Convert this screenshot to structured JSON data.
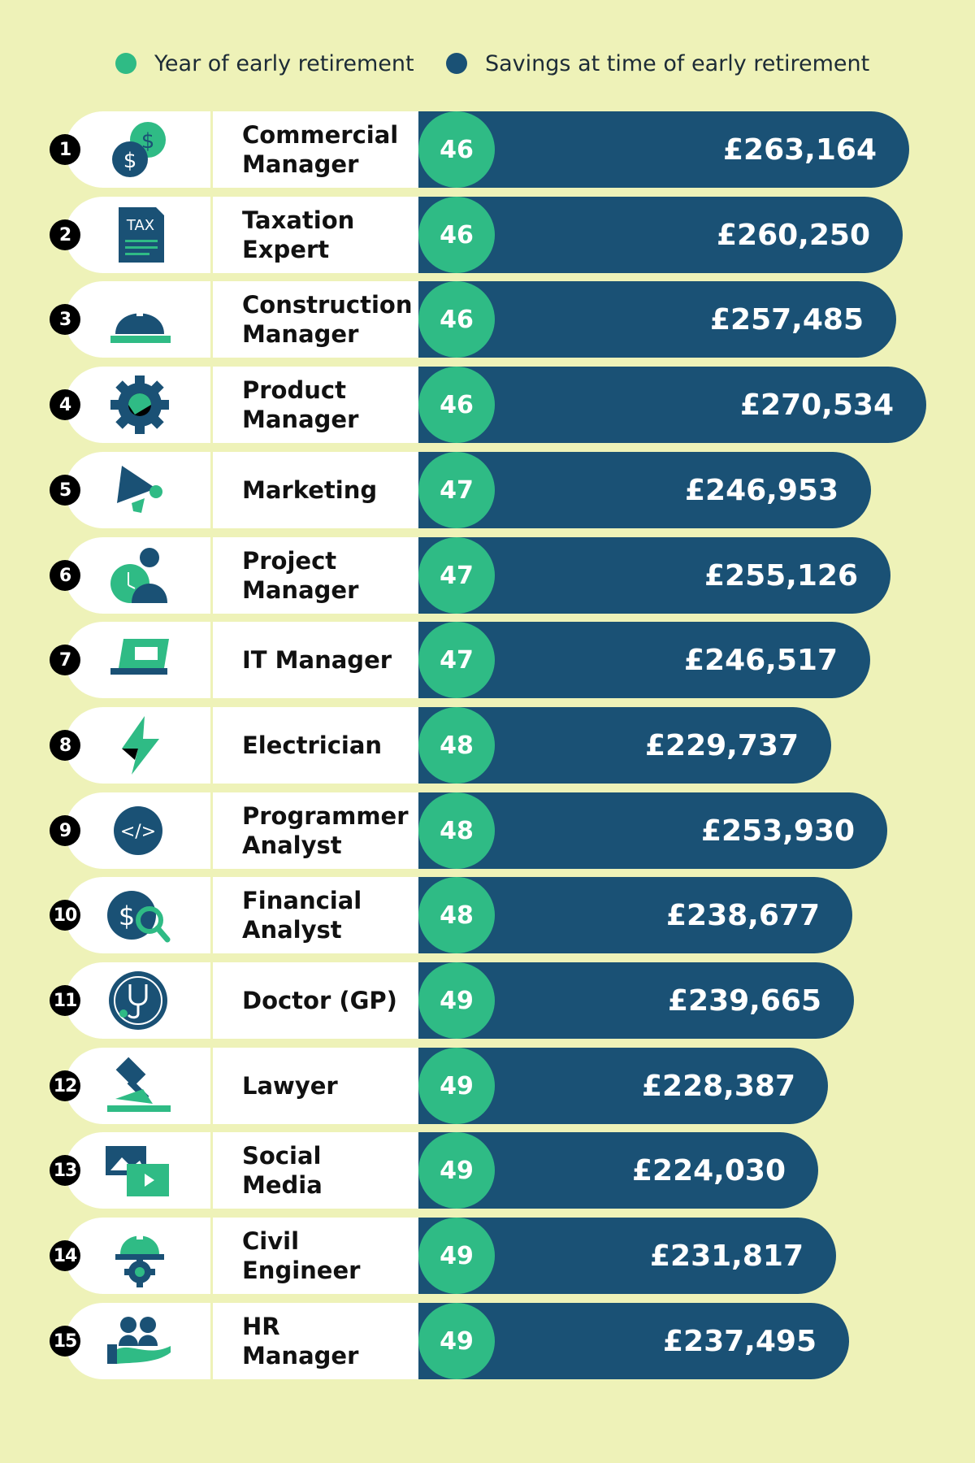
{
  "legend": {
    "year_label": "Year of early retirement",
    "savings_label": "Savings at time of early retirement",
    "year_color": "#2fbb85",
    "savings_color": "#1a5175"
  },
  "chart_data": {
    "type": "bar",
    "orientation": "horizontal",
    "categories": [
      "Commercial Manager",
      "Taxation Expert",
      "Construction Manager",
      "Product Manager",
      "Marketing",
      "Project Manager",
      "IT Manager",
      "Electrician",
      "Programmer Analyst",
      "Financial Analyst",
      "Doctor (GP)",
      "Lawyer",
      "Social Media",
      "Civil Engineer",
      "HR Manager"
    ],
    "series": [
      {
        "name": "Year of early retirement",
        "values": [
          46,
          46,
          46,
          46,
          47,
          47,
          47,
          48,
          48,
          48,
          49,
          49,
          49,
          49,
          49
        ]
      },
      {
        "name": "Savings at time of early retirement",
        "values": [
          263164,
          260250,
          257485,
          270534,
          246953,
          255126,
          246517,
          229737,
          253930,
          238677,
          239665,
          228387,
          224030,
          231817,
          237495
        ]
      }
    ],
    "rows": [
      {
        "rank": "1",
        "label": "Commercial\nManager",
        "year": "46",
        "savings": "£263,164",
        "icon": "money-coins-icon"
      },
      {
        "rank": "2",
        "label": "Taxation\nExpert",
        "year": "46",
        "savings": "£260,250",
        "icon": "tax-document-icon"
      },
      {
        "rank": "3",
        "label": "Construction\nManager",
        "year": "46",
        "savings": "£257,485",
        "icon": "hard-hat-icon"
      },
      {
        "rank": "4",
        "label": "Product\nManager",
        "year": "46",
        "savings": "£270,534",
        "icon": "gear-icon"
      },
      {
        "rank": "5",
        "label": "Marketing",
        "year": "47",
        "savings": "£246,953",
        "icon": "megaphone-icon"
      },
      {
        "rank": "6",
        "label": "Project\nManager",
        "year": "47",
        "savings": "£255,126",
        "icon": "person-clock-icon"
      },
      {
        "rank": "7",
        "label": "IT Manager",
        "year": "47",
        "savings": "£246,517",
        "icon": "laptop-icon"
      },
      {
        "rank": "8",
        "label": "Electrician",
        "year": "48",
        "savings": "£229,737",
        "icon": "lightning-icon"
      },
      {
        "rank": "9",
        "label": "Programmer\nAnalyst",
        "year": "48",
        "savings": "£253,930",
        "icon": "code-icon"
      },
      {
        "rank": "10",
        "label": "Financial\nAnalyst",
        "year": "48",
        "savings": "£238,677",
        "icon": "money-search-icon"
      },
      {
        "rank": "11",
        "label": "Doctor (GP)",
        "year": "49",
        "savings": "£239,665",
        "icon": "stethoscope-icon"
      },
      {
        "rank": "12",
        "label": "Lawyer",
        "year": "49",
        "savings": "£228,387",
        "icon": "gavel-icon"
      },
      {
        "rank": "13",
        "label": "Social\nMedia",
        "year": "49",
        "savings": "£224,030",
        "icon": "media-icon"
      },
      {
        "rank": "14",
        "label": "Civil\nEngineer",
        "year": "49",
        "savings": "£231,817",
        "icon": "engineer-helmet-icon"
      },
      {
        "rank": "15",
        "label": "HR\nManager",
        "year": "49",
        "savings": "£237,495",
        "icon": "hr-hand-icon"
      }
    ],
    "legend_position": "top"
  }
}
